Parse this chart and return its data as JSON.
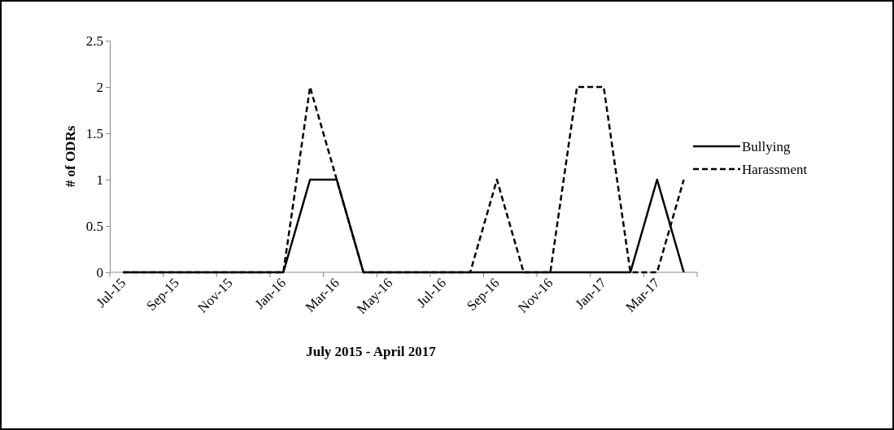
{
  "chart_data": {
    "type": "line",
    "xlabel": "July 2015 - April 2017",
    "ylabel": "# of ODRs",
    "categories": [
      "Jul-15",
      null,
      "Sep-15",
      null,
      "Nov-15",
      null,
      "Jan-16",
      null,
      "Mar-16",
      null,
      "May-16",
      null,
      "Jul-16",
      null,
      "Sep-16",
      null,
      "Nov-16",
      null,
      "Jan-17",
      null,
      "Mar-17",
      null
    ],
    "series": [
      {
        "name": "Bullying",
        "color": "#000000",
        "line_style": "solid",
        "values": [
          0,
          0,
          0,
          0,
          0,
          0,
          0,
          1,
          1,
          0,
          0,
          0,
          0,
          0,
          0,
          0,
          0,
          0,
          0,
          0,
          1,
          0
        ]
      },
      {
        "name": "Harassment",
        "color": "#000000",
        "line_style": "dashed",
        "values": [
          0,
          0,
          0,
          0,
          0,
          0,
          0,
          2,
          1,
          0,
          0,
          0,
          0,
          0,
          1,
          0,
          0,
          2,
          2,
          0,
          0,
          1
        ]
      }
    ],
    "ylim": [
      0,
      2.5
    ],
    "yticks": [
      0,
      0.5,
      1,
      1.5,
      2,
      2.5
    ],
    "grid": false,
    "legend": "right",
    "marker": "none"
  }
}
